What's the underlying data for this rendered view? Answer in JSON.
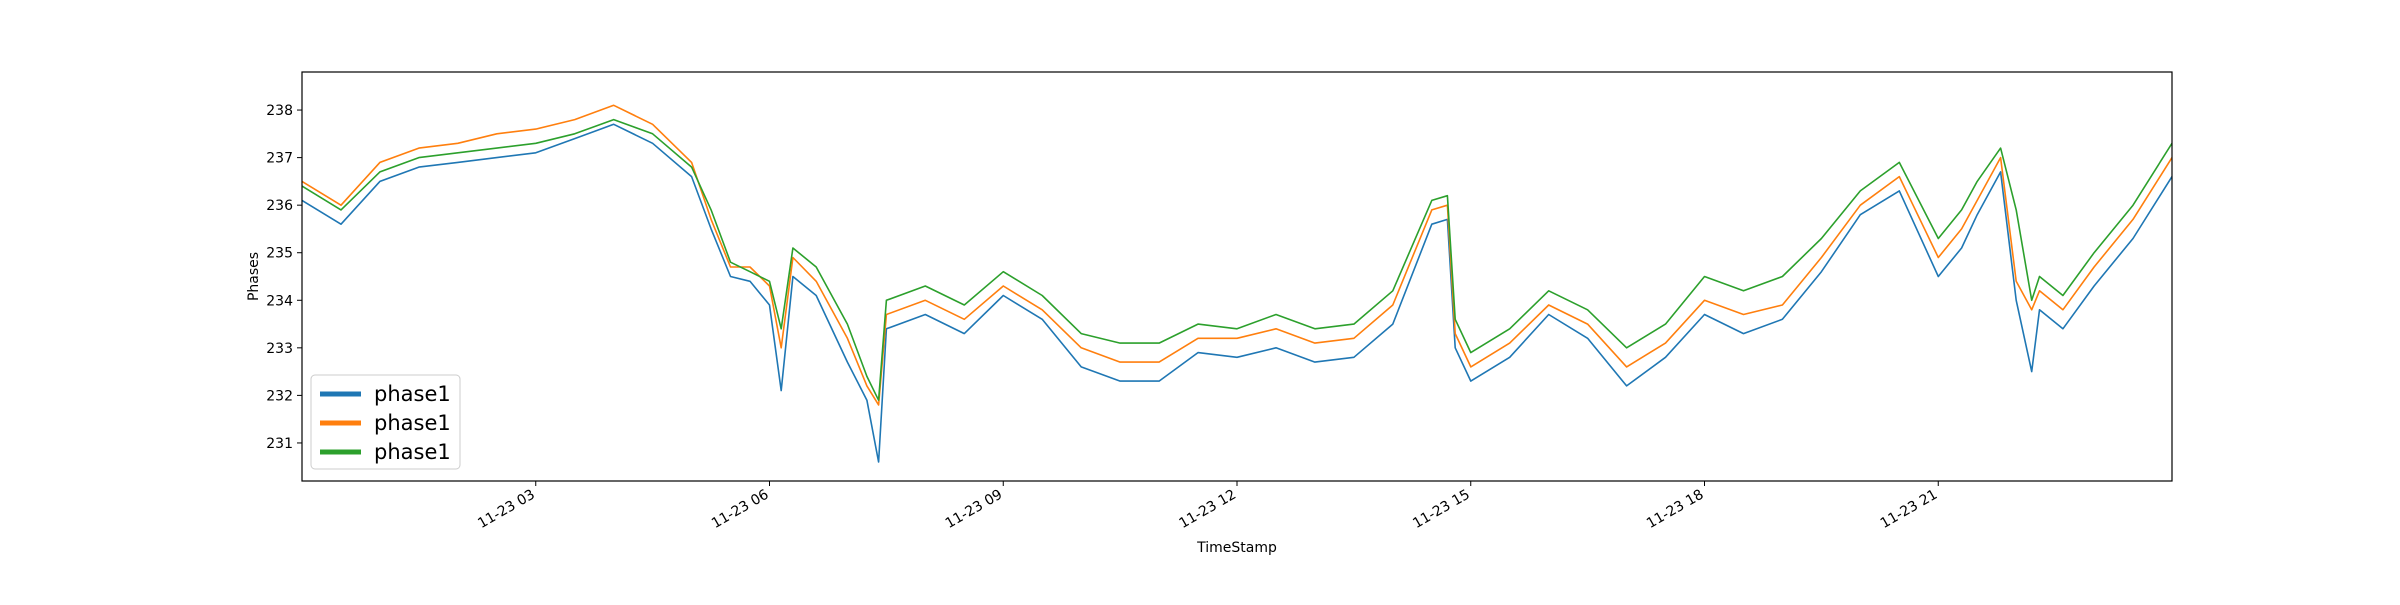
{
  "chart_data": {
    "type": "line",
    "title": "",
    "xlabel": "TimeStamp",
    "ylabel": "Phases",
    "x_tick_labels": [
      "11-23 03",
      "11-23 06",
      "11-23 09",
      "11-23 12",
      "11-23 15",
      "11-23 18",
      "11-23 21"
    ],
    "x_tick_hours": [
      3,
      6,
      9,
      12,
      15,
      18,
      21
    ],
    "xlim_hours": [
      0,
      24
    ],
    "y_ticks": [
      231,
      232,
      233,
      234,
      235,
      236,
      237,
      238
    ],
    "ylim": [
      230.2,
      238.8
    ],
    "grid": false,
    "legend_position": "lower-left",
    "x_hours": [
      0,
      0.5,
      1,
      1.5,
      2,
      2.5,
      3,
      3.5,
      4,
      4.5,
      5,
      5.25,
      5.5,
      5.75,
      6,
      6.15,
      6.3,
      6.6,
      7,
      7.25,
      7.4,
      7.5,
      8,
      8.5,
      9,
      9.5,
      10,
      10.5,
      11,
      11.5,
      12,
      12.5,
      13,
      13.5,
      14,
      14.5,
      14.7,
      14.8,
      15,
      15.5,
      16,
      16.5,
      17,
      17.5,
      18,
      18.5,
      19,
      19.5,
      20,
      20.5,
      21,
      21.3,
      21.5,
      21.8,
      22.0,
      22.2,
      22.3,
      22.6,
      23,
      23.5,
      24
    ],
    "series": [
      {
        "name": "phase1",
        "color": "#1f77b4",
        "values": [
          236.1,
          235.6,
          236.5,
          236.8,
          236.9,
          237.0,
          237.1,
          237.4,
          237.7,
          237.3,
          236.6,
          235.5,
          234.5,
          234.4,
          233.9,
          232.1,
          234.5,
          234.1,
          232.7,
          231.9,
          230.6,
          233.4,
          233.7,
          233.3,
          234.1,
          233.6,
          232.6,
          232.3,
          232.3,
          232.9,
          232.8,
          233.0,
          232.7,
          232.8,
          233.5,
          235.6,
          235.7,
          233.0,
          232.3,
          232.8,
          233.7,
          233.2,
          232.2,
          232.8,
          233.7,
          233.3,
          233.6,
          234.6,
          235.8,
          236.3,
          234.5,
          235.1,
          235.8,
          236.7,
          234.0,
          232.5,
          233.8,
          233.4,
          234.3,
          235.3,
          236.6
        ]
      },
      {
        "name": "phase1",
        "color": "#ff7f0e",
        "values": [
          236.5,
          236.0,
          236.9,
          237.2,
          237.3,
          237.5,
          237.6,
          237.8,
          238.1,
          237.7,
          236.9,
          235.7,
          234.7,
          234.7,
          234.3,
          233.0,
          234.9,
          234.4,
          233.2,
          232.2,
          231.8,
          233.7,
          234.0,
          233.6,
          234.3,
          233.8,
          233.0,
          232.7,
          232.7,
          233.2,
          233.2,
          233.4,
          233.1,
          233.2,
          233.9,
          235.9,
          236.0,
          233.3,
          232.6,
          233.1,
          233.9,
          233.5,
          232.6,
          233.1,
          234.0,
          233.7,
          233.9,
          234.9,
          236.0,
          236.6,
          234.9,
          235.5,
          236.1,
          237.0,
          234.4,
          233.8,
          234.2,
          233.8,
          234.7,
          235.7,
          237.0
        ]
      },
      {
        "name": "phase1",
        "color": "#2ca02c",
        "values": [
          236.4,
          235.9,
          236.7,
          237.0,
          237.1,
          237.2,
          237.3,
          237.5,
          237.8,
          237.5,
          236.8,
          235.9,
          234.8,
          234.6,
          234.4,
          233.4,
          235.1,
          234.7,
          233.5,
          232.4,
          231.9,
          234.0,
          234.3,
          233.9,
          234.6,
          234.1,
          233.3,
          233.1,
          233.1,
          233.5,
          233.4,
          233.7,
          233.4,
          233.5,
          234.2,
          236.1,
          236.2,
          233.6,
          232.9,
          233.4,
          234.2,
          233.8,
          233.0,
          233.5,
          234.5,
          234.2,
          234.5,
          235.3,
          236.3,
          236.9,
          235.3,
          235.9,
          236.5,
          237.2,
          235.9,
          234.0,
          234.5,
          234.1,
          235.0,
          236.0,
          237.3
        ]
      }
    ]
  }
}
